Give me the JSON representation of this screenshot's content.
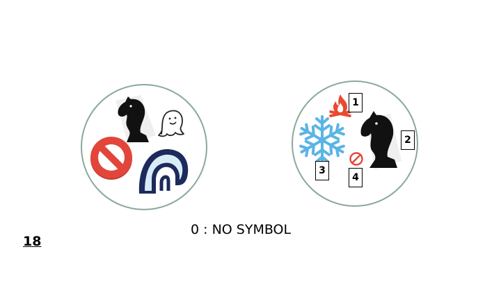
{
  "page_number": "18",
  "legend_text": "0 : NO SYMBOL",
  "left_card": {
    "symbols": [
      "knight-icon",
      "ghost-icon",
      "no-symbol-icon",
      "igloo-icon"
    ]
  },
  "right_card": {
    "symbols": [
      "campfire-icon",
      "knight-icon",
      "snowflake-icon",
      "no-symbol-icon"
    ],
    "labels": [
      "1",
      "2",
      "3",
      "4"
    ]
  },
  "colors": {
    "card_border": "#8aa89c",
    "no_symbol_red": "#e2463a",
    "snowflake_blue": "#5ab4e6",
    "fire_red": "#e84a30",
    "igloo_navy": "#1c2a5c",
    "igloo_ice": "#d8ecf8"
  }
}
